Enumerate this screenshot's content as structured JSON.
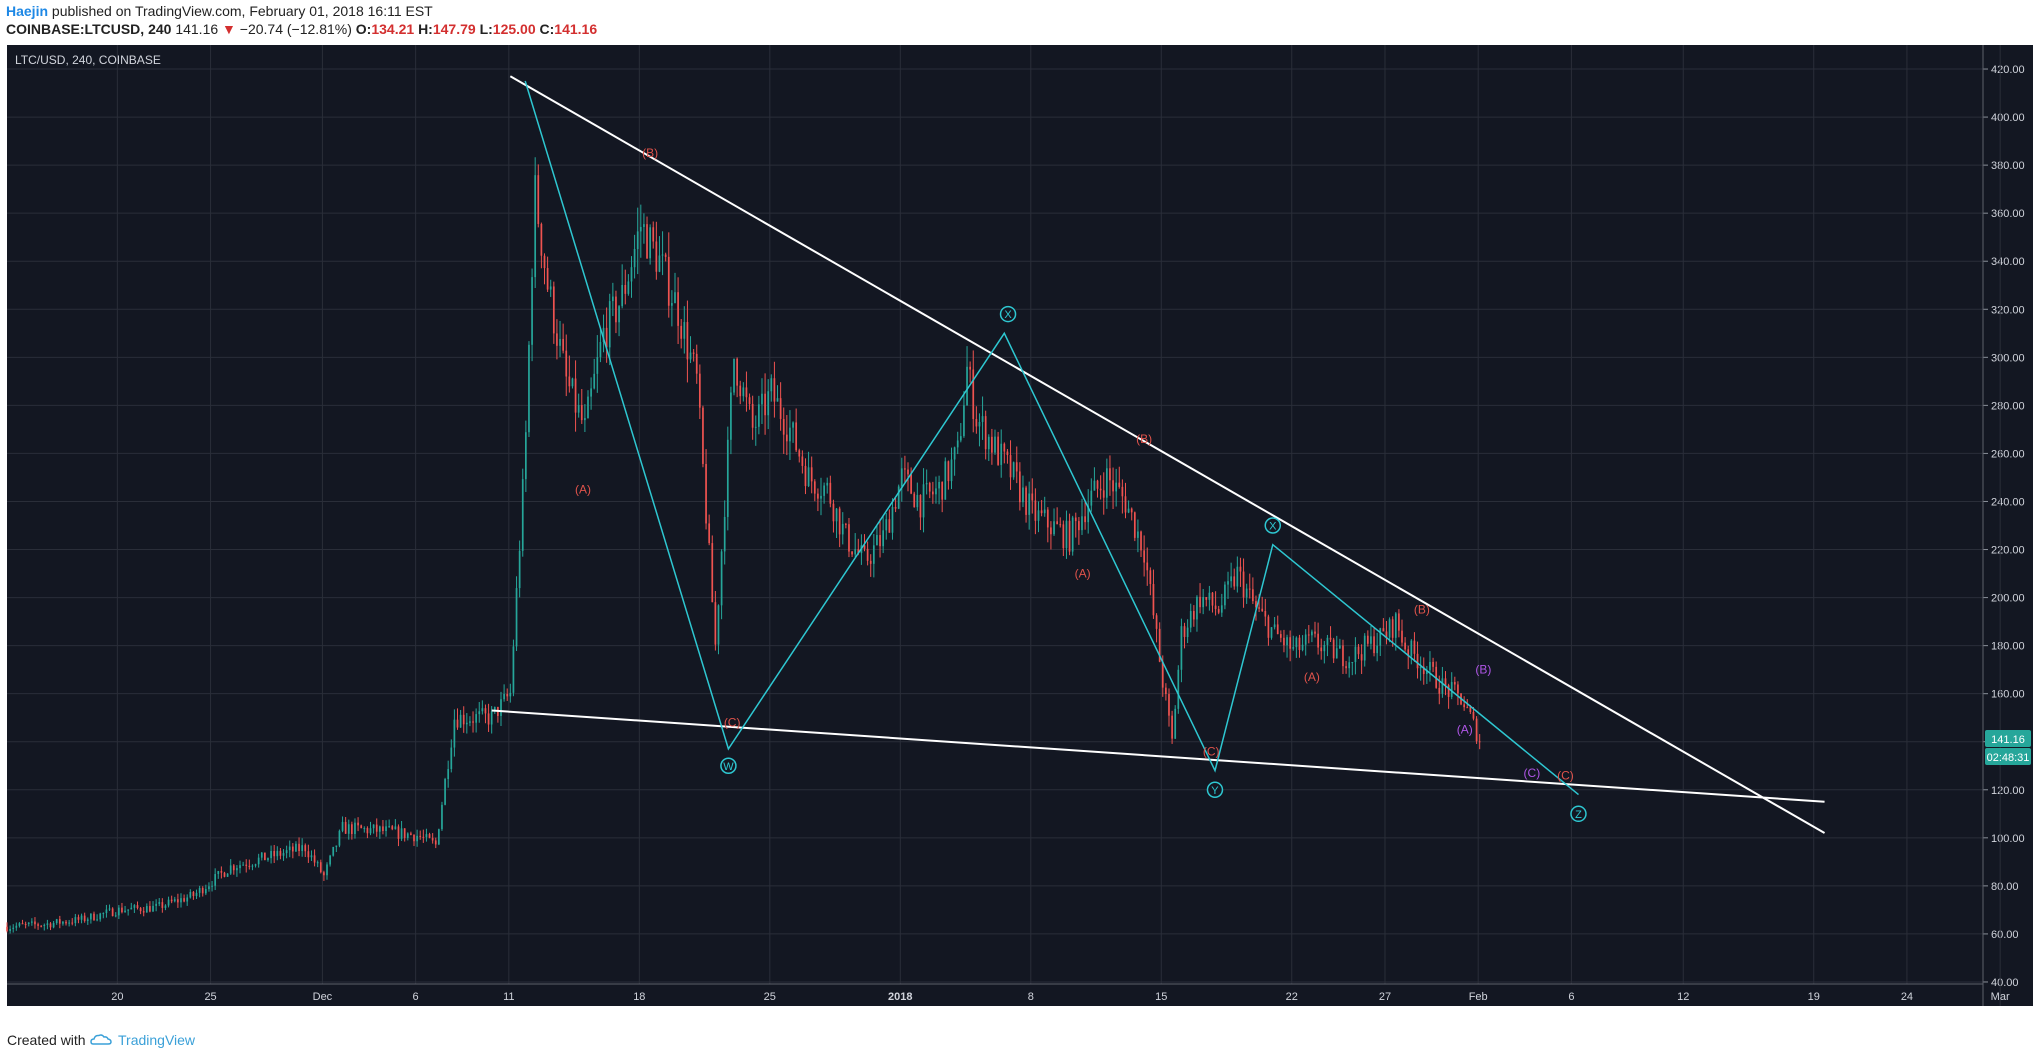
{
  "header": {
    "author": "Haejin",
    "published_text": " published on TradingView.com, February 01, 2018 16:11 EST",
    "symbol": "COINBASE:LTCUSD, 240",
    "last": "141.16",
    "arrow": "▼",
    "change": "−20.74 (−12.81%)",
    "o_label": "O:",
    "o": "134.21",
    "h_label": "H:",
    "h": "147.79",
    "l_label": "L:",
    "l": "125.00",
    "c_label": "C:",
    "c": "141.16"
  },
  "footer": {
    "created_with": "Created with",
    "brand": "TradingView"
  },
  "colors": {
    "background": "#131722",
    "grid": "#2a2e39",
    "up": "#26a69a",
    "down": "#ef5350",
    "trendline": "#ffffff",
    "wave_line": "#2ec7d1",
    "red_label": "#e0534b",
    "purple_label": "#b056e8",
    "price_badge": "#26a69a"
  },
  "chart_data": {
    "type": "candlestick",
    "title": "LTC/USD, 240, COINBASE",
    "ylim": [
      30,
      430
    ],
    "xlim": [
      0,
      106
    ],
    "y_ticks": [
      "420.00",
      "400.00",
      "380.00",
      "360.00",
      "340.00",
      "320.00",
      "300.00",
      "280.00",
      "260.00",
      "240.00",
      "220.00",
      "200.00",
      "180.00",
      "160.00",
      "140.00",
      "120.00",
      "100.00",
      "80.00",
      "60.00",
      "40.00"
    ],
    "y_tick_values": [
      420,
      400,
      380,
      360,
      340,
      320,
      300,
      280,
      260,
      240,
      220,
      200,
      180,
      160,
      140,
      120,
      100,
      80,
      60,
      40
    ],
    "x_ticks": [
      {
        "label": "20",
        "x": 5.92
      },
      {
        "label": "25",
        "x": 10.92
      },
      {
        "label": "Dec",
        "x": 16.92
      },
      {
        "label": "6",
        "x": 21.92
      },
      {
        "label": "11",
        "x": 26.92
      },
      {
        "label": "18",
        "x": 33.92
      },
      {
        "label": "25",
        "x": 40.92
      },
      {
        "label": "2018",
        "x": 47.92
      },
      {
        "label": "8",
        "x": 54.92
      },
      {
        "label": "15",
        "x": 61.92
      },
      {
        "label": "22",
        "x": 68.92
      },
      {
        "label": "27",
        "x": 73.92
      },
      {
        "label": "Feb",
        "x": 78.92
      },
      {
        "label": "6",
        "x": 83.92
      },
      {
        "label": "12",
        "x": 89.92
      },
      {
        "label": "19",
        "x": 96.92
      },
      {
        "label": "24",
        "x": 101.92
      },
      {
        "label": "Mar",
        "x": 106.92
      }
    ],
    "price_close": [
      [
        0,
        63
      ],
      [
        2,
        64
      ],
      [
        4,
        66
      ],
      [
        6,
        70
      ],
      [
        8,
        71
      ],
      [
        10,
        76
      ],
      [
        12,
        88
      ],
      [
        14,
        92
      ],
      [
        16,
        96
      ],
      [
        17,
        84
      ],
      [
        18,
        104
      ],
      [
        20,
        103
      ],
      [
        22,
        101
      ],
      [
        23,
        97
      ],
      [
        24,
        150
      ],
      [
        26,
        150
      ],
      [
        27,
        160
      ],
      [
        27.8,
        260
      ],
      [
        28.3,
        370
      ],
      [
        29,
        330
      ],
      [
        30,
        290
      ],
      [
        31,
        270
      ],
      [
        32,
        310
      ],
      [
        33,
        325
      ],
      [
        34,
        355
      ],
      [
        35,
        340
      ],
      [
        36,
        320
      ],
      [
        37,
        290
      ],
      [
        38,
        180
      ],
      [
        39,
        300
      ],
      [
        40,
        270
      ],
      [
        41,
        285
      ],
      [
        42,
        270
      ],
      [
        43,
        250
      ],
      [
        44,
        245
      ],
      [
        45,
        225
      ],
      [
        46,
        215
      ],
      [
        47,
        225
      ],
      [
        48,
        250
      ],
      [
        49,
        240
      ],
      [
        50,
        245
      ],
      [
        51,
        260
      ],
      [
        51.5,
        295
      ],
      [
        52,
        275
      ],
      [
        53,
        262
      ],
      [
        54,
        250
      ],
      [
        55,
        235
      ],
      [
        56,
        230
      ],
      [
        57,
        225
      ],
      [
        58,
        240
      ],
      [
        59,
        250
      ],
      [
        60,
        240
      ],
      [
        61,
        220
      ],
      [
        62,
        165
      ],
      [
        62.5,
        140
      ],
      [
        63,
        185
      ],
      [
        64,
        200
      ],
      [
        65,
        195
      ],
      [
        66,
        210
      ],
      [
        67,
        195
      ],
      [
        68,
        185
      ],
      [
        69,
        178
      ],
      [
        70,
        182
      ],
      [
        71,
        178
      ],
      [
        72,
        175
      ],
      [
        73,
        180
      ],
      [
        74,
        185
      ],
      [
        74.5,
        190
      ],
      [
        75,
        180
      ],
      [
        76,
        172
      ],
      [
        77,
        163
      ],
      [
        78,
        158
      ],
      [
        78.5,
        150
      ],
      [
        79,
        141
      ]
    ],
    "last_price": "141.16",
    "countdown": "02:48:31",
    "trendlines": [
      {
        "name": "upper-trendline",
        "from": [
          27,
          417
        ],
        "to": [
          97.5,
          102
        ]
      },
      {
        "name": "lower-trendline",
        "from": [
          26,
          153
        ],
        "to": [
          97.5,
          115
        ]
      }
    ],
    "wave_path": [
      [
        27.8,
        415
      ],
      [
        38.7,
        137
      ],
      [
        53.5,
        310
      ],
      [
        64.8,
        128
      ],
      [
        67.9,
        222
      ],
      [
        84.3,
        118
      ]
    ],
    "annotations": [
      {
        "text": "(B)",
        "x": 34.5,
        "y": 385,
        "color": "red"
      },
      {
        "text": "(A)",
        "x": 30.9,
        "y": 245,
        "color": "red"
      },
      {
        "text": "(C)",
        "x": 38.9,
        "y": 148,
        "color": "red"
      },
      {
        "text": "W",
        "x": 38.7,
        "y": 130,
        "color": "cyan",
        "circle": true
      },
      {
        "text": "X",
        "x": 53.7,
        "y": 318,
        "color": "cyan",
        "circle": true
      },
      {
        "text": "(B)",
        "x": 61,
        "y": 266,
        "color": "red"
      },
      {
        "text": "(A)",
        "x": 57.7,
        "y": 210,
        "color": "red"
      },
      {
        "text": "(C)",
        "x": 64.6,
        "y": 136,
        "color": "red"
      },
      {
        "text": "Y",
        "x": 64.8,
        "y": 120,
        "color": "cyan",
        "circle": true
      },
      {
        "text": "X",
        "x": 67.9,
        "y": 230,
        "color": "cyan",
        "circle": true
      },
      {
        "text": "(B)",
        "x": 75.9,
        "y": 195,
        "color": "red"
      },
      {
        "text": "(A)",
        "x": 70,
        "y": 167,
        "color": "red"
      },
      {
        "text": "(B)",
        "x": 79.2,
        "y": 170,
        "color": "purple"
      },
      {
        "text": "(A)",
        "x": 78.2,
        "y": 145,
        "color": "purple"
      },
      {
        "text": "(C)",
        "x": 81.8,
        "y": 127,
        "color": "purple"
      },
      {
        "text": "(C)",
        "x": 83.6,
        "y": 126,
        "color": "red"
      },
      {
        "text": "Z",
        "x": 84.3,
        "y": 110,
        "color": "cyan",
        "circle": true
      }
    ]
  }
}
